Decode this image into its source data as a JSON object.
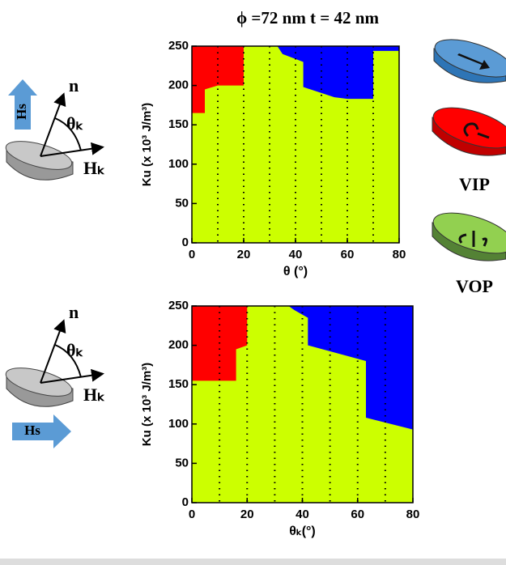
{
  "chart_data": [
    {
      "type": "region_map",
      "title": "ϕ =72 nm t = 42 nm",
      "x_label": "θ (°)",
      "y_label": "Ku (x 10³ J/m³)",
      "xlim": [
        0,
        80
      ],
      "ylim": [
        0,
        250
      ],
      "xticks": [
        0,
        20,
        40,
        60,
        80
      ],
      "yticks": [
        0,
        50,
        100,
        150,
        200,
        250
      ],
      "grid_x": [
        10,
        20,
        30,
        40,
        50,
        60,
        70
      ],
      "series": [
        {
          "color": "#ccff00",
          "x": [
            0,
            80,
            80,
            0
          ],
          "values": [
            0,
            0,
            250,
            250
          ]
        },
        {
          "color": "#ff0000",
          "x": [
            0,
            5,
            5,
            10,
            20,
            20,
            0
          ],
          "values": [
            165,
            165,
            195,
            200,
            200,
            250,
            250
          ]
        },
        {
          "color": "#0000ff",
          "x": [
            33,
            35,
            43,
            43,
            55,
            60,
            70,
            70,
            80,
            80
          ],
          "values": [
            250,
            240,
            230,
            198,
            185,
            183,
            183,
            244,
            244,
            250
          ]
        }
      ]
    },
    {
      "type": "region_map",
      "x_label": "θₖ(°)",
      "y_label": "Ku (x 10³ J/m³)",
      "xlim": [
        0,
        80
      ],
      "ylim": [
        0,
        250
      ],
      "xticks": [
        0,
        20,
        40,
        60,
        80
      ],
      "yticks": [
        0,
        50,
        100,
        150,
        200,
        250
      ],
      "grid_x": [
        10,
        20,
        30,
        40,
        50,
        60,
        70
      ],
      "series": [
        {
          "color": "#ccff00",
          "x": [
            0,
            80,
            80,
            0
          ],
          "values": [
            0,
            0,
            250,
            250
          ]
        },
        {
          "color": "#ff0000",
          "x": [
            0,
            16,
            16,
            20,
            20,
            0
          ],
          "values": [
            155,
            155,
            195,
            200,
            250,
            250
          ]
        },
        {
          "color": "#0000ff",
          "x": [
            35,
            37,
            42,
            42,
            63,
            63,
            80,
            80
          ],
          "values": [
            250,
            245,
            235,
            200,
            180,
            108,
            93,
            250
          ]
        }
      ]
    }
  ],
  "figure": {
    "top_n": "n",
    "top_theta": "θₖ",
    "top_hk": "Hₖ",
    "top_hs": "Hs",
    "bottom_n": "n",
    "bottom_theta": "θₖ",
    "bottom_hk": "Hₖ",
    "bottom_hs": "Hs",
    "vip": "VIP",
    "vop": "VOP"
  }
}
